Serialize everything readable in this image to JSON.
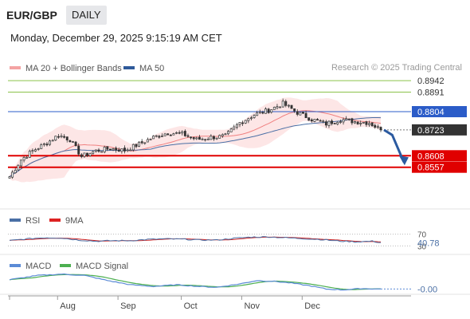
{
  "header": {
    "pair": "EUR/GBP",
    "period": "DAILY",
    "timestamp": "Monday, December 29, 2025 9:15:19 AM CET",
    "copyright": "Research © 2025 Trading Central"
  },
  "colors": {
    "bollinger": "#f08080",
    "bollinger_fill": "#fde3e3",
    "ma50": "#4a6fa5",
    "resistance": "#8bc34a",
    "pivot": "#2b5cc8",
    "support": "#e00000",
    "last_price_bg": "#333333",
    "arrow": "#2b5aa0",
    "rsi": "#4a6fa5",
    "rsi_ma": "#cc2222",
    "macd": "#5b8bd6",
    "macd_signal": "#4caf50",
    "candle_body": "#333333"
  },
  "legend": {
    "ma20": "MA 20 + Bollinger Bands",
    "ma50": "MA 50",
    "rsi": "RSI",
    "rsi_ma": "9MA",
    "macd": "MACD",
    "macd_signal": "MACD Signal"
  },
  "chart_data": [
    {
      "type": "candlestick",
      "title": "EUR/GBP",
      "ylim": [
        0.8485,
        0.896
      ],
      "levels": [
        {
          "value": 0.8942,
          "label": "0.8942",
          "kind": "resistance"
        },
        {
          "value": 0.8891,
          "label": "0.8891",
          "kind": "resistance"
        },
        {
          "value": 0.8804,
          "label": "0.8804",
          "kind": "pivot"
        },
        {
          "value": 0.8723,
          "label": "0.8723",
          "kind": "last"
        },
        {
          "value": 0.8608,
          "label": "0.8608",
          "kind": "support"
        },
        {
          "value": 0.8557,
          "label": "0.8557",
          "kind": "support"
        }
      ],
      "x_ticks": [
        "Aug",
        "Sep",
        "Oct",
        "Nov",
        "Dec"
      ],
      "close_anchors": [
        [
          0,
          0.8515
        ],
        [
          4,
          0.859
        ],
        [
          8,
          0.863
        ],
        [
          13,
          0.8665
        ],
        [
          17,
          0.87
        ],
        [
          21,
          0.868
        ],
        [
          25,
          0.8605
        ],
        [
          30,
          0.863
        ],
        [
          35,
          0.864
        ],
        [
          40,
          0.8632
        ],
        [
          45,
          0.866
        ],
        [
          50,
          0.869
        ],
        [
          55,
          0.871
        ],
        [
          60,
          0.8705
        ],
        [
          65,
          0.868
        ],
        [
          70,
          0.869
        ],
        [
          75,
          0.8695
        ],
        [
          80,
          0.8755
        ],
        [
          85,
          0.879
        ],
        [
          90,
          0.881
        ],
        [
          95,
          0.884
        ],
        [
          100,
          0.88
        ],
        [
          105,
          0.877
        ],
        [
          110,
          0.875
        ],
        [
          115,
          0.877
        ],
        [
          120,
          0.876
        ],
        [
          125,
          0.8755
        ],
        [
          129,
          0.8723
        ]
      ],
      "forecast": [
        [
          129,
          0.8723
        ],
        [
          133,
          0.87
        ],
        [
          137,
          0.858
        ]
      ]
    },
    {
      "type": "line",
      "title": "RSI",
      "ylim": [
        20,
        80
      ],
      "levels": [
        {
          "value": 70,
          "label": "70"
        },
        {
          "value": 30,
          "label": "30"
        }
      ],
      "last_value": "40.78",
      "rsi_anchors": [
        [
          0,
          48
        ],
        [
          6,
          54
        ],
        [
          12,
          58
        ],
        [
          18,
          57
        ],
        [
          24,
          50
        ],
        [
          30,
          46
        ],
        [
          36,
          48
        ],
        [
          42,
          48
        ],
        [
          48,
          52
        ],
        [
          54,
          54
        ],
        [
          60,
          53
        ],
        [
          66,
          50
        ],
        [
          72,
          50
        ],
        [
          78,
          56
        ],
        [
          84,
          60
        ],
        [
          90,
          61
        ],
        [
          96,
          58
        ],
        [
          102,
          55
        ],
        [
          108,
          52
        ],
        [
          114,
          47
        ],
        [
          120,
          44
        ],
        [
          126,
          46
        ],
        [
          129,
          41
        ]
      ]
    },
    {
      "type": "line",
      "title": "MACD",
      "ylim": [
        -0.002,
        0.004
      ],
      "last_value": "-0.00",
      "macd_anchors": [
        [
          0,
          0.002
        ],
        [
          10,
          0.003
        ],
        [
          18,
          0.0033
        ],
        [
          26,
          0.003
        ],
        [
          34,
          0.0018
        ],
        [
          42,
          0.0008
        ],
        [
          50,
          0.0004
        ],
        [
          58,
          0.0008
        ],
        [
          66,
          0.0004
        ],
        [
          72,
          0.0002
        ],
        [
          80,
          0.001
        ],
        [
          86,
          0.0018
        ],
        [
          92,
          0.0016
        ],
        [
          98,
          0.0012
        ],
        [
          104,
          0.0006
        ],
        [
          110,
          -0.0002
        ],
        [
          116,
          -0.0004
        ],
        [
          122,
          -0.0001
        ],
        [
          129,
          -0.0002
        ]
      ]
    }
  ]
}
